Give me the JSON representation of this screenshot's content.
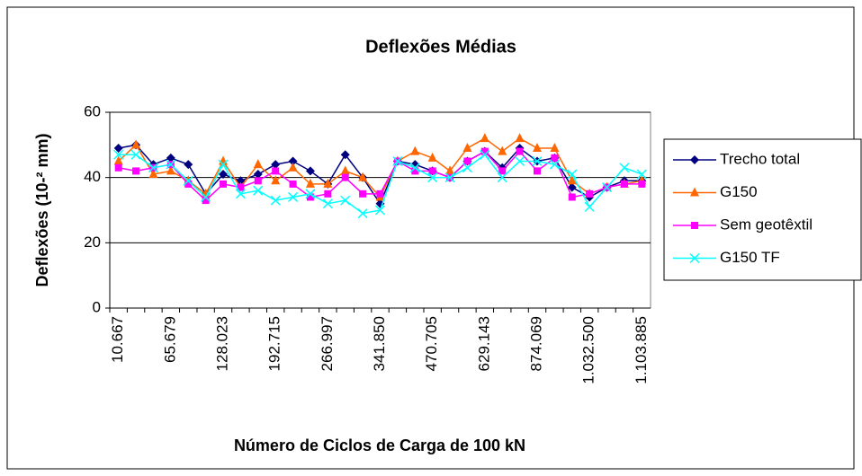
{
  "chart_data": {
    "type": "line",
    "title": "Deflexões Médias",
    "x_label": "Número de Ciclos de Carga de 100 kN",
    "y_label": "Deflexões (10-² mm)",
    "categories": [
      "10.667",
      null,
      null,
      "65.679",
      null,
      null,
      "128.023",
      null,
      null,
      "192.715",
      null,
      null,
      "266.997",
      null,
      null,
      "341.850",
      null,
      null,
      "470.705",
      null,
      null,
      "629.143",
      null,
      null,
      "874.069",
      null,
      null,
      "1.032.500",
      null,
      null,
      "1.103.885"
    ],
    "series": [
      {
        "name": "Trecho total",
        "color": "#000080",
        "marker": "diamond",
        "values": [
          49,
          50,
          44,
          46,
          44,
          35,
          41,
          39,
          41,
          44,
          45,
          42,
          38,
          47,
          40,
          32,
          45,
          44,
          42,
          40,
          45,
          48,
          43,
          49,
          45,
          46,
          37,
          34,
          37,
          39,
          39
        ]
      },
      {
        "name": "G150",
        "color": "#ff6600",
        "marker": "triangle",
        "values": [
          45,
          50,
          41,
          42,
          39,
          35,
          45,
          37,
          44,
          39,
          43,
          38,
          38,
          42,
          40,
          34,
          45,
          48,
          46,
          42,
          49,
          52,
          48,
          52,
          49,
          49,
          39,
          35,
          37,
          38,
          39
        ]
      },
      {
        "name": "Sem geotêxtil",
        "color": "#ff00ff",
        "marker": "square",
        "values": [
          43,
          42,
          43,
          44,
          38,
          33,
          38,
          37,
          39,
          42,
          38,
          34,
          35,
          40,
          35,
          35,
          45,
          42,
          42,
          40,
          45,
          48,
          42,
          48,
          42,
          46,
          34,
          35,
          37,
          38,
          38
        ]
      },
      {
        "name": "G150 TF",
        "color": "#00ffff",
        "marker": "x",
        "values": [
          47,
          47,
          43,
          44,
          39,
          34,
          44,
          35,
          36,
          33,
          34,
          35,
          32,
          33,
          29,
          30,
          45,
          43,
          40,
          40,
          43,
          47,
          40,
          45,
          45,
          44,
          41,
          31,
          37,
          43,
          41
        ]
      }
    ],
    "ylim": [
      0,
      60
    ],
    "yticks": [
      0,
      20,
      40,
      60
    ],
    "grid": true,
    "legend": "right"
  }
}
